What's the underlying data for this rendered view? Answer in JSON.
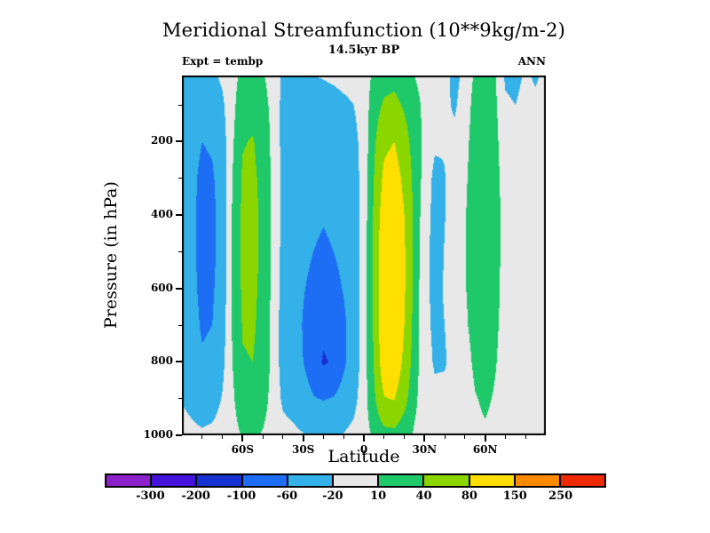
{
  "header": {
    "title": "Meridional Streamfunction (10**9kg/m-2)",
    "subtitle": "14.5kyr BP",
    "left_label": "Expt = tembp",
    "right_label": "ANN"
  },
  "axes": {
    "x": {
      "label": "Latitude",
      "min": -90,
      "max": 90,
      "minor_tick_step": 10,
      "major_ticks": [
        {
          "value": -60,
          "label": "60S"
        },
        {
          "value": -30,
          "label": "30S"
        },
        {
          "value": 0,
          "label": "0"
        },
        {
          "value": 30,
          "label": "30N"
        },
        {
          "value": 60,
          "label": "60N"
        }
      ]
    },
    "y": {
      "label": "Pressure (in hPa)",
      "min": 20,
      "max": 1000,
      "minor_tick_step": 100,
      "major_ticks": [
        {
          "value": 200,
          "label": "200"
        },
        {
          "value": 400,
          "label": "400"
        },
        {
          "value": 600,
          "label": "600"
        },
        {
          "value": 800,
          "label": "800"
        },
        {
          "value": 1000,
          "label": "1000"
        }
      ]
    }
  },
  "colorbar": {
    "labels": [
      "-300",
      "-200",
      "-100",
      "-60",
      "-20",
      "10",
      "40",
      "80",
      "150",
      "250"
    ]
  },
  "chart_data": {
    "type": "heatmap",
    "title": "Meridional Streamfunction (10**9kg/m-2)",
    "subtitle": "14.5kyr BP",
    "annotations": [
      "Expt = tembp",
      "ANN"
    ],
    "xlabel": "Latitude",
    "ylabel": "Pressure (in hPa)",
    "units": "10**9 kg/m-2",
    "xlim": [
      -90,
      90
    ],
    "ylim": [
      20,
      1000
    ],
    "legend_position": "bottom",
    "grid": false,
    "field_background": "#E8E8E8",
    "levels": [
      -300,
      -200,
      -100,
      -60,
      -20,
      10,
      40,
      80,
      150,
      250
    ],
    "palette": [
      "#8B1FC8",
      "#4414DC",
      "#1632D2",
      "#1E6EF5",
      "#33B1E8",
      "#E8E8E8",
      "#1FC96A",
      "#8CD600",
      "#FFDF00",
      "#FF8A00",
      "#EE2A00"
    ],
    "lats": [
      -90,
      -85,
      -80,
      -75,
      -70,
      -65,
      -60,
      -55,
      -50,
      -45,
      -40,
      -35,
      -30,
      -25,
      -20,
      -15,
      -10,
      -5,
      0,
      5,
      10,
      15,
      20,
      25,
      30,
      35,
      40,
      45,
      50,
      55,
      60,
      65,
      70,
      75,
      80,
      85,
      90
    ],
    "pressures": [
      20,
      100,
      200,
      300,
      400,
      500,
      600,
      700,
      800,
      900,
      1000
    ],
    "z_orientation": "z[lat_index][pressure_index], pressure 20 hPa (top) to 1000 hPa (bottom)",
    "z": [
      [
        -25,
        -30,
        -35,
        -35,
        -35,
        -35,
        -35,
        -35,
        -30,
        -22,
        -8
      ],
      [
        -30,
        -40,
        -45,
        -50,
        -50,
        -50,
        -50,
        -45,
        -40,
        -30,
        -12
      ],
      [
        -30,
        -45,
        -60,
        -70,
        -75,
        -75,
        -70,
        -65,
        -55,
        -40,
        -15
      ],
      [
        -25,
        -40,
        -55,
        -65,
        -70,
        -70,
        -65,
        -60,
        -50,
        -35,
        -12
      ],
      [
        -15,
        -25,
        -35,
        -40,
        -42,
        -42,
        -40,
        -35,
        -28,
        -18,
        -6
      ],
      [
        0,
        2,
        6,
        10,
        13,
        14,
        14,
        13,
        10,
        5,
        0
      ],
      [
        18,
        28,
        38,
        44,
        46,
        46,
        45,
        42,
        38,
        30,
        12
      ],
      [
        20,
        30,
        42,
        46,
        48,
        48,
        46,
        44,
        40,
        32,
        14
      ],
      [
        12,
        20,
        28,
        32,
        34,
        34,
        33,
        31,
        28,
        20,
        8
      ],
      [
        0,
        2,
        3,
        3,
        3,
        3,
        2,
        2,
        2,
        1,
        0
      ],
      [
        -25,
        -30,
        -30,
        -28,
        -28,
        -30,
        -32,
        -35,
        -35,
        -26,
        -9
      ],
      [
        -30,
        -35,
        -35,
        -35,
        -35,
        -38,
        -42,
        -45,
        -44,
        -33,
        -13
      ],
      [
        -25,
        -35,
        -40,
        -45,
        -48,
        -52,
        -58,
        -62,
        -60,
        -46,
        -18
      ],
      [
        -20,
        -35,
        -45,
        -50,
        -55,
        -60,
        -68,
        -76,
        -78,
        -58,
        -24
      ],
      [
        -18,
        -32,
        -45,
        -52,
        -58,
        -64,
        -74,
        -88,
        -105,
        -62,
        -26
      ],
      [
        -15,
        -30,
        -42,
        -50,
        -55,
        -60,
        -70,
        -82,
        -95,
        -58,
        -24
      ],
      [
        -12,
        -25,
        -38,
        -45,
        -50,
        -52,
        -58,
        -66,
        -66,
        -46,
        -18
      ],
      [
        -10,
        -20,
        -30,
        -35,
        -38,
        -40,
        -42,
        -44,
        -42,
        -30,
        -11
      ],
      [
        0,
        -4,
        -7,
        -7,
        -6,
        -4,
        -3,
        -3,
        -3,
        -2,
        0
      ],
      [
        14,
        24,
        34,
        40,
        45,
        48,
        48,
        45,
        42,
        34,
        14
      ],
      [
        25,
        45,
        70,
        90,
        105,
        115,
        118,
        115,
        108,
        78,
        28
      ],
      [
        28,
        50,
        80,
        100,
        115,
        125,
        128,
        122,
        112,
        82,
        30
      ],
      [
        20,
        35,
        55,
        70,
        80,
        85,
        85,
        80,
        70,
        52,
        19
      ],
      [
        10,
        18,
        25,
        30,
        32,
        32,
        30,
        28,
        24,
        16,
        7
      ],
      [
        2,
        5,
        4,
        0,
        -6,
        -10,
        -12,
        -11,
        -8,
        -4,
        0
      ],
      [
        0,
        -5,
        -15,
        -28,
        -30,
        -30,
        -28,
        -26,
        -23,
        -14,
        -4
      ],
      [
        -10,
        -14,
        -18,
        -21,
        -21,
        -19,
        -18,
        -20,
        -22,
        -14,
        -4
      ],
      [
        -30,
        -24,
        -12,
        -5,
        -3,
        -3,
        -5,
        -8,
        -12,
        -9,
        -3
      ],
      [
        -10,
        -4,
        2,
        5,
        8,
        9,
        8,
        4,
        -6,
        -12,
        -4
      ],
      [
        15,
        20,
        22,
        25,
        26,
        26,
        25,
        24,
        18,
        8,
        3
      ],
      [
        25,
        30,
        32,
        35,
        36,
        36,
        35,
        32,
        26,
        15,
        6
      ],
      [
        12,
        15,
        18,
        20,
        21,
        20,
        18,
        15,
        12,
        7,
        2
      ],
      [
        -25,
        -15,
        -8,
        -3,
        0,
        0,
        0,
        0,
        -2,
        -2,
        0
      ],
      [
        -30,
        -20,
        -10,
        -3,
        0,
        0,
        0,
        0,
        0,
        0,
        0
      ],
      [
        -15,
        -8,
        -3,
        0,
        0,
        0,
        0,
        0,
        0,
        0,
        0
      ],
      [
        -25,
        -12,
        -3,
        0,
        0,
        0,
        0,
        0,
        0,
        0,
        0
      ],
      [
        -10,
        -5,
        -1,
        0,
        0,
        0,
        0,
        0,
        0,
        0,
        0
      ]
    ]
  }
}
